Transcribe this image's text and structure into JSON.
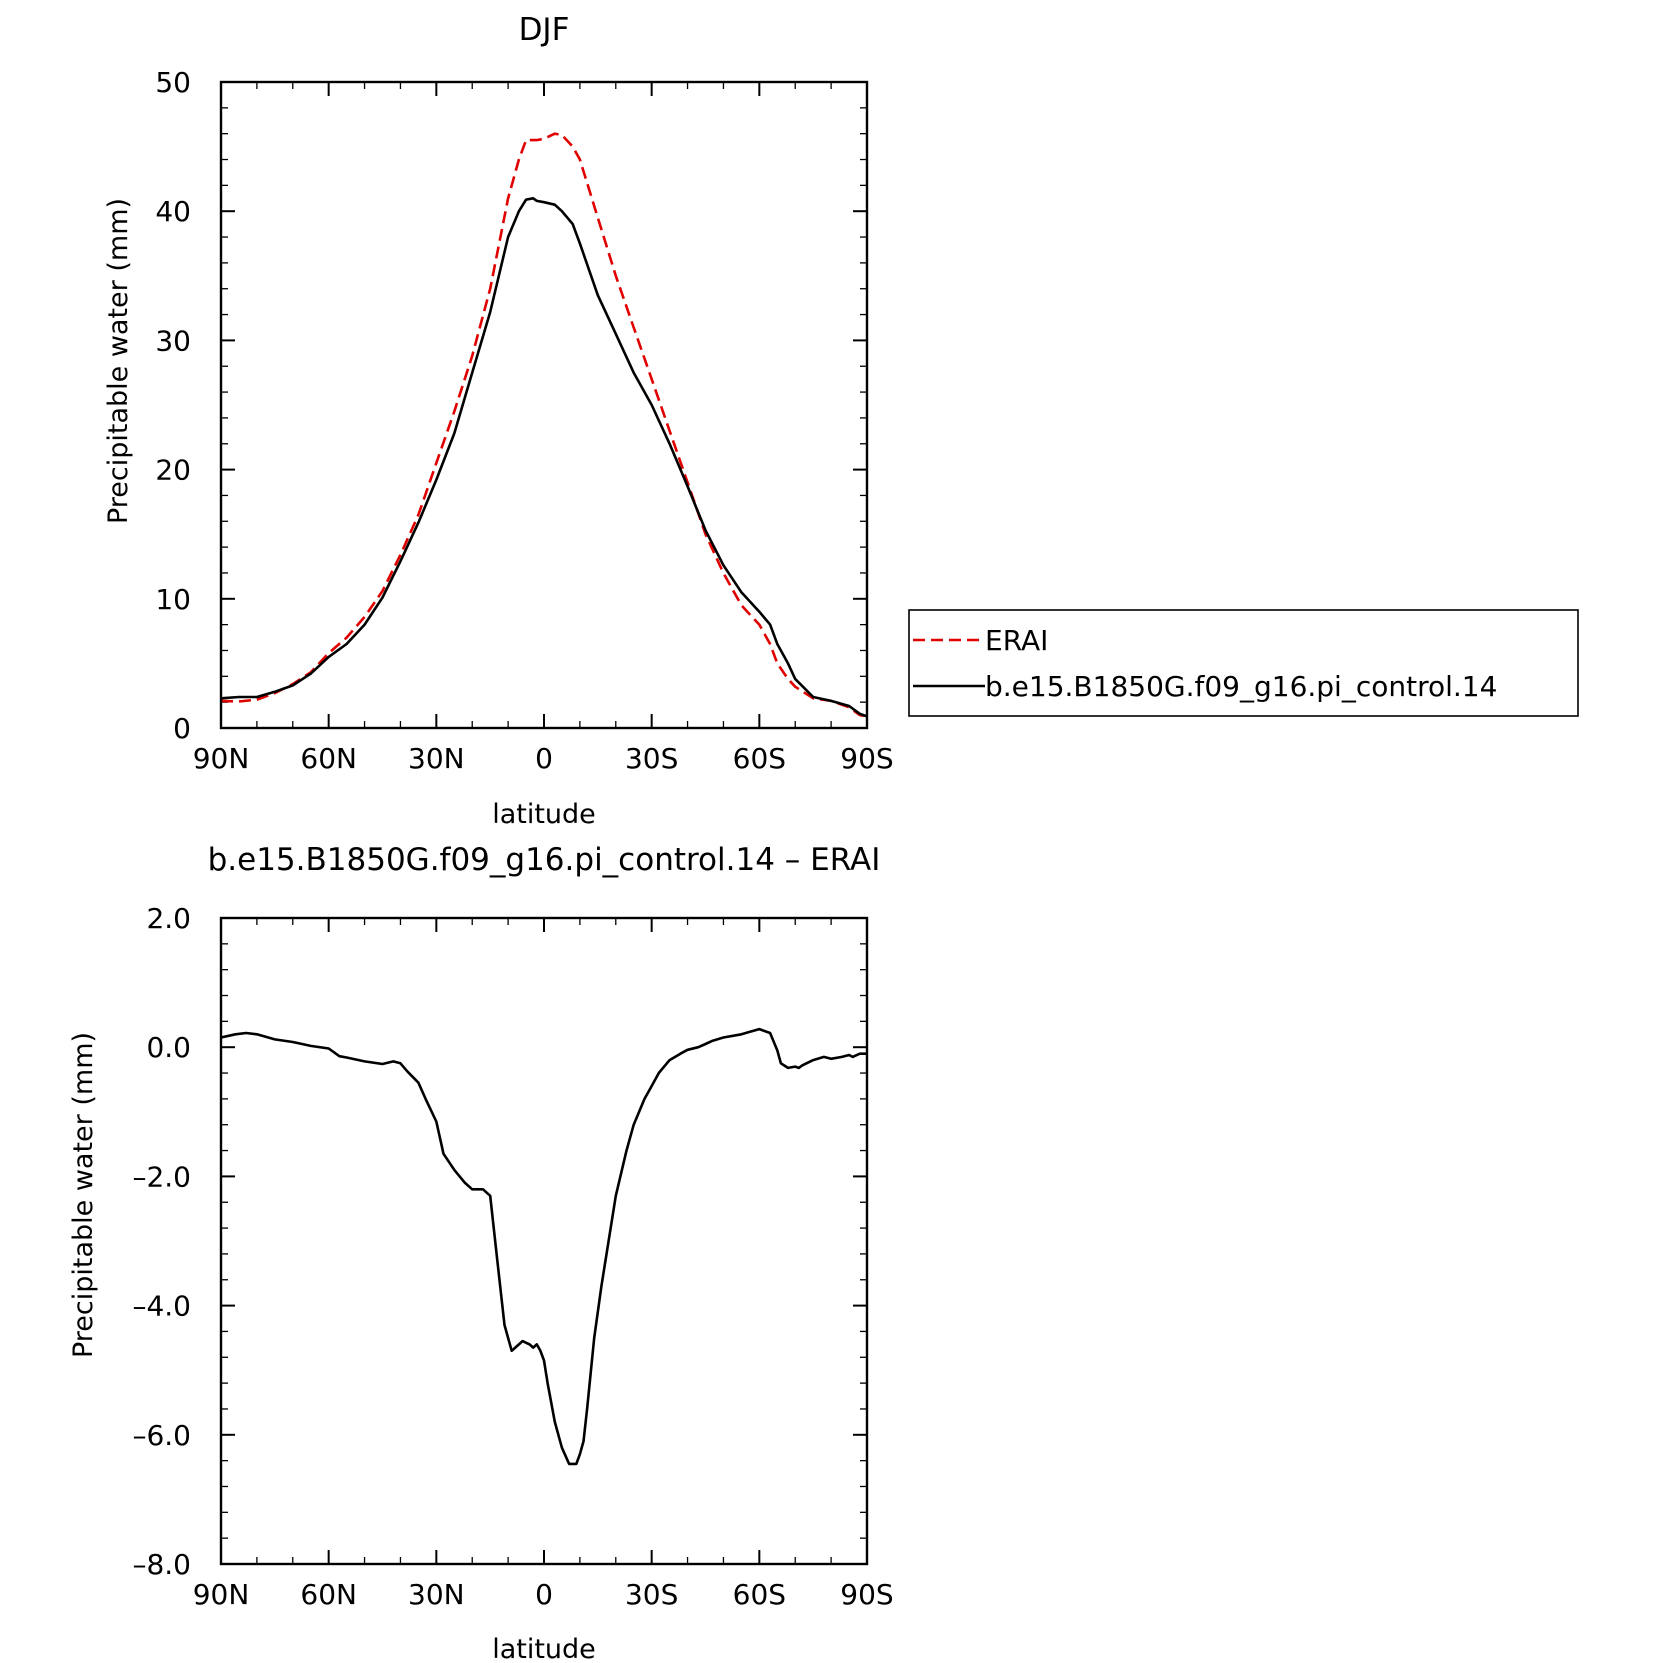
{
  "chart_data": [
    {
      "type": "line",
      "title": "DJF",
      "xlabel": "latitude",
      "ylabel": "Precipitable water (mm)",
      "xlim": [
        90,
        -90
      ],
      "ylim": [
        0,
        50
      ],
      "xticks": [
        90,
        60,
        30,
        0,
        -30,
        -60,
        -90
      ],
      "xtick_labels": [
        "90N",
        "60N",
        "30N",
        "0",
        "30S",
        "60S",
        "90S"
      ],
      "yticks": [
        0,
        10,
        20,
        30,
        40,
        50
      ],
      "ytick_labels": [
        "0",
        "10",
        "20",
        "30",
        "40",
        "50"
      ],
      "legend": "right",
      "series": [
        {
          "name": "ERAI",
          "color": "#e00000",
          "dash": "dashed",
          "x": [
            90,
            85,
            80,
            75,
            70,
            65,
            60,
            55,
            50,
            45,
            40,
            35,
            30,
            25,
            20,
            15,
            10,
            7,
            5,
            3,
            2,
            0,
            -3,
            -5,
            -8,
            -10,
            -15,
            -20,
            -25,
            -30,
            -35,
            -40,
            -45,
            -50,
            -55,
            -60,
            -63,
            -65,
            -68,
            -70,
            -75,
            -80,
            -85,
            -88,
            -90
          ],
          "y": [
            2.1,
            2.05,
            2.2,
            2.7,
            3.4,
            4.3,
            5.8,
            7.0,
            8.6,
            10.6,
            13.4,
            16.5,
            20.5,
            24.5,
            28.8,
            34.0,
            41.0,
            44.0,
            45.5,
            45.5,
            45.5,
            45.6,
            46.0,
            45.9,
            45.0,
            44.0,
            39.5,
            35.0,
            31.0,
            27.0,
            23.0,
            19.0,
            15.0,
            12.0,
            9.5,
            8.0,
            6.5,
            5.0,
            3.8,
            3.2,
            2.3,
            2.1,
            1.6,
            1.0,
            0.9
          ]
        },
        {
          "name": "b.e15.B1850G.f09_g16.pi_control.14",
          "color": "#000000",
          "dash": "solid",
          "x": [
            90,
            85,
            80,
            75,
            70,
            65,
            60,
            55,
            50,
            45,
            40,
            35,
            30,
            25,
            20,
            15,
            10,
            7,
            5,
            3,
            2,
            0,
            -3,
            -5,
            -8,
            -10,
            -15,
            -20,
            -25,
            -30,
            -35,
            -40,
            -45,
            -50,
            -55,
            -60,
            -63,
            -65,
            -68,
            -70,
            -75,
            -80,
            -85,
            -88,
            -90
          ],
          "y": [
            2.3,
            2.4,
            2.4,
            2.8,
            3.3,
            4.2,
            5.5,
            6.5,
            8.0,
            10.1,
            12.9,
            15.9,
            19.2,
            22.8,
            27.5,
            32.2,
            38.0,
            40.0,
            40.9,
            41.0,
            40.8,
            40.7,
            40.5,
            40.0,
            39.0,
            37.5,
            33.5,
            30.5,
            27.5,
            25.0,
            22.0,
            18.7,
            15.3,
            12.6,
            10.5,
            9.0,
            8.0,
            6.5,
            5.0,
            3.8,
            2.4,
            2.1,
            1.7,
            1.1,
            0.9
          ]
        }
      ]
    },
    {
      "type": "line",
      "title": "b.e15.B1850G.f09_g16.pi_control.14 – ERAI",
      "xlabel": "latitude",
      "ylabel": "Precipitable water (mm)",
      "xlim": [
        90,
        -90
      ],
      "ylim": [
        -8.0,
        2.0
      ],
      "xticks": [
        90,
        60,
        30,
        0,
        -30,
        -60,
        -90
      ],
      "xtick_labels": [
        "90N",
        "60N",
        "30N",
        "0",
        "30S",
        "60S",
        "90S"
      ],
      "yticks": [
        2.0,
        0.0,
        -2.0,
        -4.0,
        -6.0,
        -8.0
      ],
      "ytick_labels": [
        "2.0",
        "0.0",
        "–2.0",
        "–4.0",
        "–6.0",
        "–8.0"
      ],
      "series": [
        {
          "color": "#000000",
          "dash": "solid",
          "x": [
            90,
            86,
            83,
            80,
            75,
            70,
            65,
            60,
            57,
            55,
            50,
            45,
            42,
            40,
            38,
            35,
            33,
            30,
            29,
            28,
            25,
            22,
            20,
            17,
            15,
            13,
            11,
            9,
            8,
            6,
            4,
            3,
            2,
            1,
            0,
            -1,
            -3,
            -5,
            -7,
            -9,
            -10,
            -11,
            -12,
            -14,
            -16,
            -18,
            -20,
            -23,
            -25,
            -28,
            -30,
            -32,
            -35,
            -38,
            -40,
            -43,
            -45,
            -47,
            -50,
            -55,
            -58,
            -60,
            -63,
            -65,
            -66,
            -68,
            -70,
            -71,
            -72,
            -75,
            -78,
            -80,
            -83,
            -85,
            -86,
            -88,
            -90
          ],
          "y": [
            0.15,
            0.2,
            0.22,
            0.2,
            0.12,
            0.08,
            0.02,
            -0.02,
            -0.14,
            -0.16,
            -0.22,
            -0.26,
            -0.22,
            -0.25,
            -0.38,
            -0.55,
            -0.8,
            -1.15,
            -1.4,
            -1.65,
            -1.9,
            -2.1,
            -2.2,
            -2.2,
            -2.3,
            -3.3,
            -4.3,
            -4.7,
            -4.65,
            -4.55,
            -4.6,
            -4.65,
            -4.6,
            -4.7,
            -4.85,
            -5.2,
            -5.8,
            -6.2,
            -6.45,
            -6.45,
            -6.3,
            -6.1,
            -5.6,
            -4.5,
            -3.7,
            -3.0,
            -2.3,
            -1.6,
            -1.2,
            -0.8,
            -0.6,
            -0.4,
            -0.2,
            -0.1,
            -0.04,
            0.0,
            0.05,
            0.1,
            0.15,
            0.2,
            0.25,
            0.28,
            0.22,
            -0.05,
            -0.25,
            -0.32,
            -0.3,
            -0.32,
            -0.28,
            -0.2,
            -0.15,
            -0.18,
            -0.15,
            -0.12,
            -0.15,
            -0.1,
            -0.1
          ]
        }
      ]
    }
  ]
}
